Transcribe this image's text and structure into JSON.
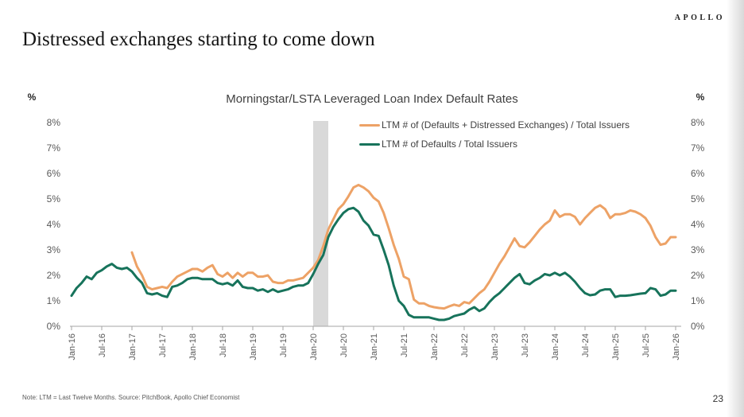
{
  "slide": {
    "logo": "APOLLO",
    "title": "Distressed exchanges starting to come down",
    "note": "Note: LTM = Last Twelve Months. Source: PitchBook, Apollo Chief Economist",
    "page_number": "23"
  },
  "chart_data": {
    "type": "line",
    "title": "Morningstar/LSTA Leveraged Loan Index Default Rates",
    "y_unit_label": "%",
    "ylim": [
      0,
      8
    ],
    "y_tick_step": 1,
    "y_tick_labels": [
      "0%",
      "1%",
      "2%",
      "3%",
      "4%",
      "5%",
      "6%",
      "7%",
      "8%"
    ],
    "x_frequency": "monthly",
    "x_range": [
      "Jan-16",
      "Jan-26"
    ],
    "x_tick_labels": [
      "Jan-16",
      "Jul-16",
      "Jan-17",
      "Jul-17",
      "Jan-18",
      "Jul-18",
      "Jan-19",
      "Jul-19",
      "Jan-20",
      "Jul-20",
      "Jan-21",
      "Jul-21",
      "Jan-22",
      "Jul-22",
      "Jan-23",
      "Jul-23",
      "Jan-24",
      "Jul-24",
      "Jan-25",
      "Jul-25",
      "Jan-26"
    ],
    "grid": false,
    "legend_position": "top-right-inside",
    "axis_color": "#a6a6a6",
    "tick_label_color": "#595959",
    "shaded_region": {
      "from": "Jan-20",
      "to": "Apr-20",
      "color": "#d9d9d9",
      "meaning": "recession band"
    },
    "series": [
      {
        "name": "LTM # of (Defaults + Distressed Exchanges) / Total Issuers",
        "color": "#EDA266",
        "values": [
          null,
          null,
          null,
          null,
          null,
          null,
          null,
          null,
          null,
          null,
          null,
          null,
          2.9,
          2.35,
          2.0,
          1.55,
          1.45,
          1.5,
          1.55,
          1.5,
          1.75,
          1.95,
          2.05,
          2.15,
          2.25,
          2.25,
          2.15,
          2.3,
          2.4,
          2.05,
          1.95,
          2.1,
          1.9,
          2.1,
          1.95,
          2.1,
          2.1,
          1.95,
          1.95,
          2.0,
          1.75,
          1.7,
          1.7,
          1.8,
          1.8,
          1.85,
          1.9,
          2.1,
          2.3,
          2.6,
          3.15,
          3.8,
          4.2,
          4.6,
          4.8,
          5.1,
          5.45,
          5.55,
          5.45,
          5.3,
          5.05,
          4.9,
          4.45,
          3.85,
          3.2,
          2.65,
          1.95,
          1.85,
          1.05,
          0.9,
          0.9,
          0.8,
          0.75,
          0.72,
          0.7,
          0.78,
          0.85,
          0.8,
          0.95,
          0.9,
          1.1,
          1.3,
          1.45,
          1.75,
          2.1,
          2.45,
          2.75,
          3.1,
          3.45,
          3.15,
          3.1,
          3.3,
          3.55,
          3.8,
          4.0,
          4.15,
          4.55,
          4.3,
          4.4,
          4.4,
          4.3,
          4.0,
          4.25,
          4.45,
          4.65,
          4.75,
          4.6,
          4.25,
          4.4,
          4.4,
          4.45,
          4.55,
          4.5,
          4.4,
          4.25,
          3.95,
          3.5,
          3.2,
          3.25,
          3.5,
          3.5
        ]
      },
      {
        "name": "LTM # of Defaults / Total Issuers",
        "color": "#17735B",
        "values": [
          1.2,
          1.5,
          1.7,
          1.95,
          1.85,
          2.1,
          2.2,
          2.35,
          2.45,
          2.3,
          2.25,
          2.3,
          2.15,
          1.9,
          1.7,
          1.3,
          1.25,
          1.3,
          1.2,
          1.15,
          1.55,
          1.6,
          1.7,
          1.85,
          1.9,
          1.9,
          1.85,
          1.85,
          1.85,
          1.7,
          1.65,
          1.7,
          1.6,
          1.8,
          1.55,
          1.5,
          1.5,
          1.4,
          1.45,
          1.35,
          1.45,
          1.35,
          1.4,
          1.45,
          1.55,
          1.6,
          1.6,
          1.7,
          2.05,
          2.45,
          2.8,
          3.5,
          3.9,
          4.2,
          4.45,
          4.6,
          4.65,
          4.5,
          4.15,
          3.95,
          3.6,
          3.55,
          3.0,
          2.4,
          1.6,
          1.0,
          0.8,
          0.45,
          0.35,
          0.35,
          0.35,
          0.35,
          0.3,
          0.25,
          0.25,
          0.3,
          0.4,
          0.45,
          0.5,
          0.65,
          0.75,
          0.6,
          0.7,
          0.95,
          1.15,
          1.3,
          1.5,
          1.7,
          1.9,
          2.05,
          1.7,
          1.65,
          1.8,
          1.9,
          2.05,
          2.0,
          2.1,
          2.0,
          2.1,
          1.95,
          1.75,
          1.5,
          1.3,
          1.22,
          1.25,
          1.4,
          1.45,
          1.45,
          1.15,
          1.2,
          1.2,
          1.22,
          1.25,
          1.28,
          1.3,
          1.5,
          1.45,
          1.2,
          1.25,
          1.4,
          1.4
        ]
      }
    ]
  }
}
